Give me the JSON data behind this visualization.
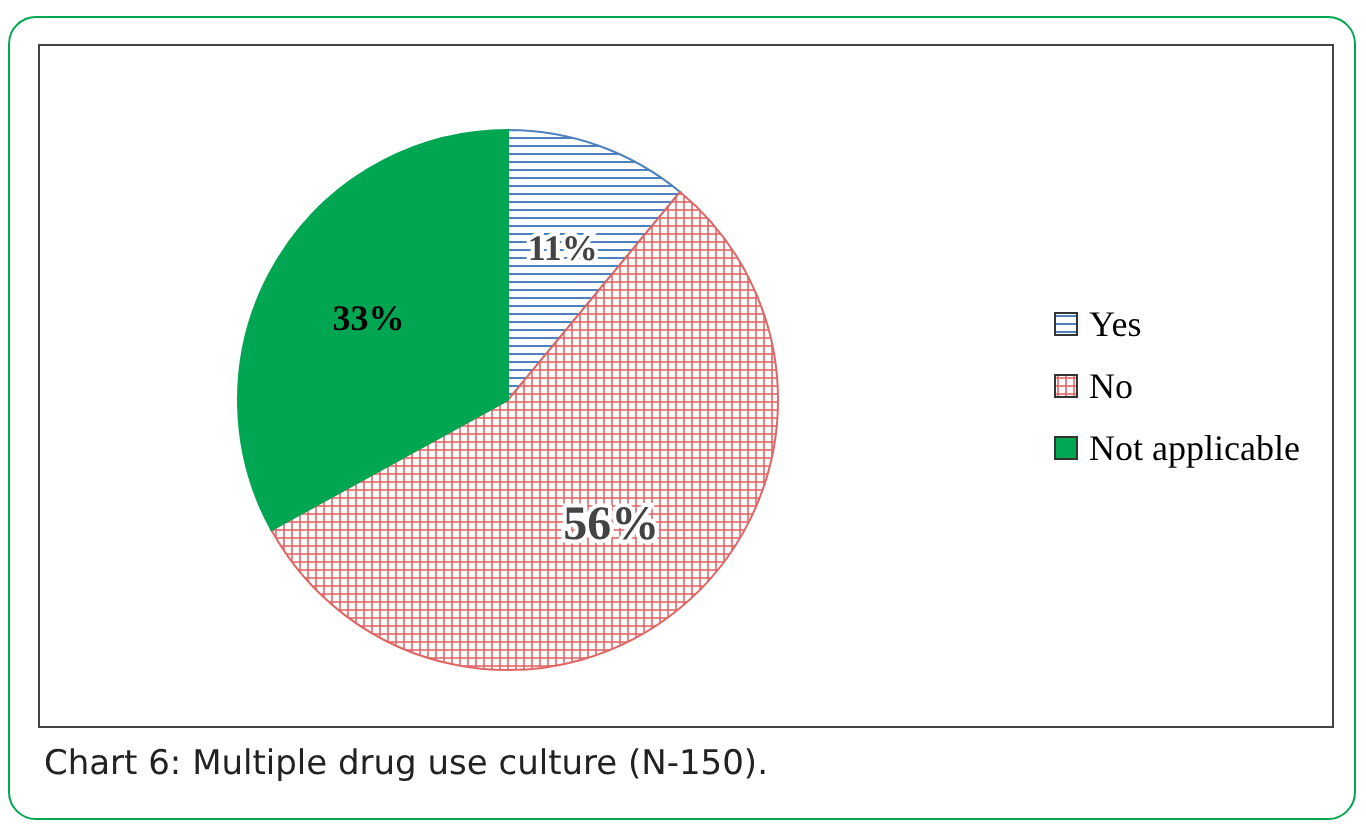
{
  "chart_data": {
    "type": "pie",
    "categories": [
      "Yes",
      "No",
      "Not applicable"
    ],
    "values": [
      11,
      56,
      33
    ],
    "colors": [
      "#4f81bd",
      "#e06666",
      "#00a651"
    ],
    "value_labels": [
      "11%",
      "56%",
      "33%"
    ],
    "legend": "right",
    "annotations": [
      "Chart 6: Multiple drug use culture (N-150)."
    ]
  }
}
